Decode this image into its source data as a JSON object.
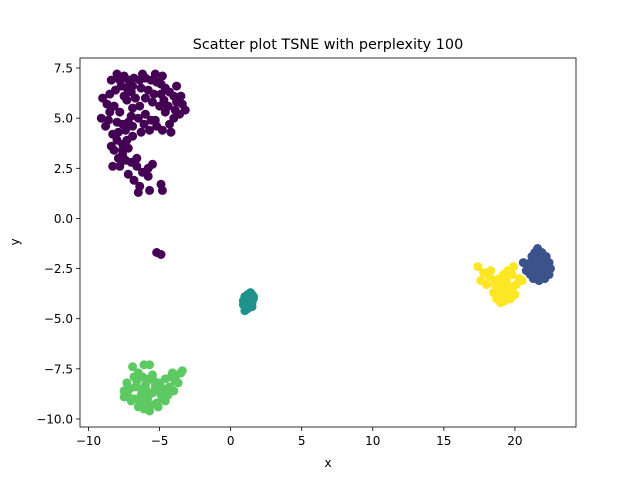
{
  "chart_data": {
    "type": "scatter",
    "title": "Scatter plot TSNE with perplexity 100",
    "xlabel": "x",
    "ylabel": "y",
    "xlim": [
      -10.6,
      24.3
    ],
    "ylim": [
      -10.4,
      8.0
    ],
    "xticks": [
      -10,
      -5,
      0,
      5,
      10,
      15,
      20
    ],
    "yticks": [
      -10.0,
      -7.5,
      -5.0,
      -2.5,
      0.0,
      2.5,
      5.0,
      7.5
    ],
    "xtick_labels": [
      "−10",
      "−5",
      "0",
      "5",
      "10",
      "15",
      "20"
    ],
    "ytick_labels": [
      "−10.0",
      "−7.5",
      "−5.0",
      "−2.5",
      "0.0",
      "2.5",
      "5.0",
      "7.5"
    ],
    "grid": false,
    "legend": "none",
    "series": [
      {
        "color": "#440154",
        "points": [
          [
            -8.0,
            7.2
          ],
          [
            -7.5,
            7.1
          ],
          [
            -7.2,
            6.9
          ],
          [
            -6.8,
            7.0
          ],
          [
            -6.4,
            6.9
          ],
          [
            -6.0,
            7.0
          ],
          [
            -5.6,
            6.9
          ],
          [
            -5.2,
            6.8
          ],
          [
            -4.9,
            6.7
          ],
          [
            -4.6,
            6.5
          ],
          [
            -4.3,
            6.3
          ],
          [
            -4.0,
            6.1
          ],
          [
            -3.8,
            5.8
          ],
          [
            -3.4,
            5.7
          ],
          [
            -3.2,
            5.4
          ],
          [
            -3.6,
            5.2
          ],
          [
            -4.0,
            5.0
          ],
          [
            -4.3,
            4.7
          ],
          [
            -4.2,
            4.3
          ],
          [
            -4.8,
            4.4
          ],
          [
            -5.2,
            4.6
          ],
          [
            -5.6,
            4.9
          ],
          [
            -6.0,
            5.2
          ],
          [
            -6.4,
            5.6
          ],
          [
            -6.7,
            6.0
          ],
          [
            -7.0,
            6.3
          ],
          [
            -7.3,
            6.5
          ],
          [
            -7.7,
            6.6
          ],
          [
            -8.1,
            6.4
          ],
          [
            -8.5,
            6.2
          ],
          [
            -9.0,
            6.0
          ],
          [
            -8.7,
            5.7
          ],
          [
            -8.2,
            5.6
          ],
          [
            -8.5,
            5.3
          ],
          [
            -9.1,
            5.0
          ],
          [
            -8.6,
            4.9
          ],
          [
            -8.0,
            4.8
          ],
          [
            -7.6,
            4.7
          ],
          [
            -7.2,
            4.8
          ],
          [
            -6.9,
            4.6
          ],
          [
            -7.4,
            4.4
          ],
          [
            -7.9,
            4.3
          ],
          [
            -8.3,
            4.2
          ],
          [
            -8.0,
            3.9
          ],
          [
            -7.6,
            3.7
          ],
          [
            -7.2,
            3.5
          ],
          [
            -7.6,
            3.2
          ],
          [
            -7.9,
            3.0
          ],
          [
            -7.4,
            2.9
          ],
          [
            -7.0,
            2.8
          ],
          [
            -6.6,
            2.6
          ],
          [
            -6.2,
            2.3
          ],
          [
            -5.8,
            2.5
          ],
          [
            -5.5,
            2.7
          ],
          [
            -5.8,
            2.1
          ],
          [
            -6.4,
            1.6
          ],
          [
            -6.8,
            1.9
          ],
          [
            -7.2,
            2.2
          ],
          [
            -7.8,
            2.6
          ],
          [
            -6.5,
            1.3
          ],
          [
            -5.7,
            1.4
          ],
          [
            -8.3,
            2.6
          ],
          [
            -5.3,
            4.9
          ],
          [
            -4.6,
            5.3
          ],
          [
            -4.7,
            5.9
          ],
          [
            -4.9,
            6.2
          ],
          [
            -5.4,
            6.2
          ],
          [
            -5.8,
            6.4
          ],
          [
            -6.3,
            6.5
          ],
          [
            -6.9,
            6.6
          ],
          [
            -7.3,
            5.9
          ],
          [
            -7.8,
            5.3
          ],
          [
            -7.0,
            5.1
          ],
          [
            -6.5,
            5.0
          ],
          [
            -6.1,
            4.7
          ],
          [
            -5.7,
            4.4
          ],
          [
            -6.3,
            4.3
          ],
          [
            -6.9,
            4.1
          ],
          [
            -8.4,
            3.6
          ],
          [
            -8.2,
            3.4
          ],
          [
            -4.4,
            5.6
          ],
          [
            -3.9,
            5.4
          ],
          [
            -3.5,
            6.1
          ],
          [
            -4.8,
            7.1
          ],
          [
            -5.3,
            7.2
          ],
          [
            -6.2,
            7.2
          ],
          [
            -7.8,
            6.9
          ],
          [
            -8.4,
            6.9
          ],
          [
            -7.6,
            3.4
          ],
          [
            -6.6,
            3.0
          ],
          [
            -7.3,
            3.9
          ],
          [
            -6.9,
            5.5
          ],
          [
            -5.0,
            5.6
          ],
          [
            -5.5,
            5.8
          ],
          [
            -4.9,
            1.7
          ],
          [
            -4.8,
            1.4
          ],
          [
            -3.8,
            6.6
          ],
          [
            -8.8,
            4.6
          ],
          [
            -7.5,
            6.1
          ],
          [
            -6.0,
            6.0
          ],
          [
            -5.2,
            -1.7
          ],
          [
            -4.9,
            -1.8
          ]
        ]
      },
      {
        "color": "#3b528b",
        "points": [
          [
            21.2,
            -1.9
          ],
          [
            21.6,
            -1.5
          ],
          [
            21.9,
            -1.7
          ],
          [
            22.2,
            -1.9
          ],
          [
            22.4,
            -2.2
          ],
          [
            22.5,
            -2.5
          ],
          [
            22.4,
            -2.8
          ],
          [
            22.1,
            -3.0
          ],
          [
            21.7,
            -3.1
          ],
          [
            21.3,
            -3.0
          ],
          [
            21.0,
            -2.7
          ],
          [
            20.9,
            -2.4
          ],
          [
            20.6,
            -2.2
          ],
          [
            21.1,
            -2.2
          ],
          [
            21.5,
            -2.1
          ],
          [
            21.8,
            -2.3
          ],
          [
            22.1,
            -2.5
          ],
          [
            21.9,
            -2.7
          ],
          [
            21.5,
            -2.6
          ],
          [
            21.3,
            -2.4
          ],
          [
            21.7,
            -1.8
          ],
          [
            22.0,
            -2.1
          ],
          [
            22.3,
            -2.4
          ],
          [
            21.6,
            -2.9
          ],
          [
            21.1,
            -2.8
          ],
          [
            21.4,
            -1.7
          ],
          [
            22.2,
            -2.7
          ],
          [
            21.8,
            -2.5
          ],
          [
            21.2,
            -2.5
          ],
          [
            20.8,
            -2.6
          ]
        ]
      },
      {
        "color": "#21918c",
        "points": [
          [
            1.0,
            -3.9
          ],
          [
            1.2,
            -3.8
          ],
          [
            1.4,
            -3.7
          ],
          [
            1.5,
            -3.8
          ],
          [
            1.6,
            -4.0
          ],
          [
            1.5,
            -4.2
          ],
          [
            1.4,
            -4.4
          ],
          [
            1.2,
            -4.5
          ],
          [
            1.0,
            -4.6
          ],
          [
            0.9,
            -4.3
          ],
          [
            0.9,
            -4.1
          ],
          [
            1.1,
            -4.2
          ],
          [
            1.3,
            -4.0
          ],
          [
            1.2,
            -3.9
          ],
          [
            1.5,
            -4.4
          ],
          [
            1.1,
            -4.4
          ],
          [
            1.4,
            -4.1
          ],
          [
            1.3,
            -4.3
          ],
          [
            1.6,
            -3.9
          ],
          [
            1.0,
            -4.0
          ]
        ]
      },
      {
        "color": "#5ec962",
        "points": [
          [
            -6.9,
            -7.4
          ],
          [
            -6.1,
            -7.3
          ],
          [
            -5.7,
            -7.3
          ],
          [
            -6.5,
            -7.7
          ],
          [
            -6.2,
            -7.9
          ],
          [
            -5.8,
            -8.0
          ],
          [
            -5.4,
            -8.1
          ],
          [
            -5.0,
            -8.2
          ],
          [
            -4.6,
            -8.0
          ],
          [
            -4.2,
            -7.9
          ],
          [
            -3.8,
            -7.8
          ],
          [
            -3.5,
            -7.7
          ],
          [
            -3.9,
            -8.1
          ],
          [
            -4.3,
            -8.4
          ],
          [
            -4.7,
            -8.5
          ],
          [
            -5.1,
            -8.6
          ],
          [
            -5.5,
            -8.7
          ],
          [
            -5.9,
            -8.6
          ],
          [
            -6.3,
            -8.5
          ],
          [
            -6.7,
            -8.4
          ],
          [
            -7.1,
            -8.5
          ],
          [
            -7.5,
            -8.6
          ],
          [
            -7.2,
            -8.9
          ],
          [
            -6.8,
            -9.0
          ],
          [
            -6.4,
            -9.1
          ],
          [
            -6.0,
            -9.2
          ],
          [
            -5.6,
            -9.3
          ],
          [
            -5.2,
            -9.2
          ],
          [
            -4.8,
            -9.0
          ],
          [
            -4.4,
            -8.8
          ],
          [
            -6.1,
            -9.5
          ],
          [
            -5.7,
            -9.6
          ],
          [
            -6.5,
            -9.4
          ],
          [
            -7.0,
            -9.1
          ],
          [
            -7.5,
            -8.9
          ],
          [
            -6.6,
            -8.1
          ],
          [
            -6.0,
            -8.3
          ],
          [
            -5.3,
            -8.4
          ],
          [
            -4.9,
            -8.8
          ],
          [
            -5.8,
            -8.9
          ],
          [
            -6.3,
            -8.8
          ],
          [
            -5.1,
            -9.4
          ],
          [
            -4.6,
            -9.1
          ],
          [
            -4.0,
            -8.6
          ],
          [
            -3.7,
            -8.2
          ],
          [
            -5.5,
            -7.8
          ],
          [
            -6.8,
            -7.9
          ],
          [
            -7.3,
            -8.2
          ],
          [
            -4.1,
            -7.7
          ],
          [
            -3.4,
            -7.6
          ]
        ]
      },
      {
        "color": "#fde725",
        "points": [
          [
            17.4,
            -2.4
          ],
          [
            17.8,
            -2.7
          ],
          [
            18.2,
            -2.9
          ],
          [
            18.6,
            -3.1
          ],
          [
            19.0,
            -3.3
          ],
          [
            19.4,
            -3.1
          ],
          [
            19.8,
            -2.8
          ],
          [
            19.9,
            -2.4
          ],
          [
            19.5,
            -2.6
          ],
          [
            19.2,
            -2.8
          ],
          [
            18.8,
            -3.5
          ],
          [
            19.1,
            -3.8
          ],
          [
            19.5,
            -3.9
          ],
          [
            19.8,
            -3.6
          ],
          [
            20.1,
            -3.3
          ],
          [
            20.3,
            -3.0
          ],
          [
            18.5,
            -3.7
          ],
          [
            18.7,
            -4.0
          ],
          [
            19.0,
            -4.2
          ],
          [
            19.3,
            -4.1
          ],
          [
            17.6,
            -3.1
          ],
          [
            18.0,
            -3.3
          ],
          [
            18.3,
            -2.6
          ],
          [
            19.6,
            -3.4
          ],
          [
            20.0,
            -3.8
          ],
          [
            19.7,
            -4.0
          ],
          [
            18.9,
            -3.0
          ],
          [
            19.3,
            -3.6
          ],
          [
            18.6,
            -3.3
          ],
          [
            20.5,
            -3.1
          ]
        ]
      }
    ]
  }
}
